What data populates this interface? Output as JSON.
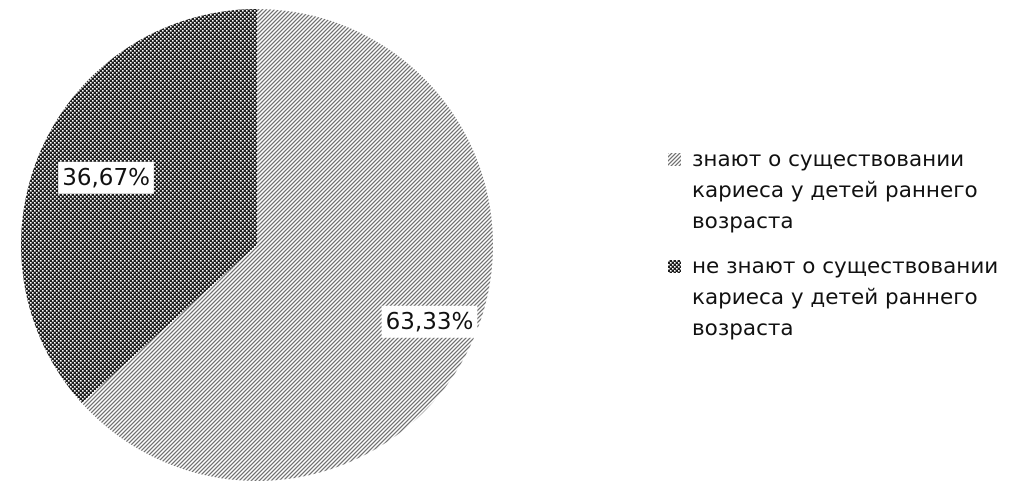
{
  "chart_data": {
    "type": "pie",
    "title": "",
    "slices": [
      {
        "label": "знают о существовании кариеса у детей раннего возраста",
        "value": 63.33,
        "data_label": "63,33%",
        "pattern": "light-diagonal-hatch",
        "color": "#6f6f6f"
      },
      {
        "label": "не знают о существовании кариеса у детей раннего возраста",
        "value": 36.67,
        "data_label": "36,67%",
        "pattern": "dark-cross-hatch",
        "color": "#1c1c1c"
      }
    ],
    "start_angle": "12 o'clock",
    "direction": "clockwise",
    "legend_position": "right"
  }
}
